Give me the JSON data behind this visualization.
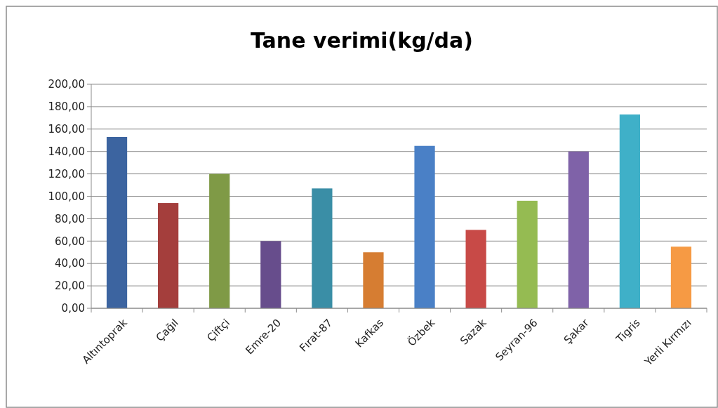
{
  "chart_data": {
    "type": "bar",
    "title": "Tane verimi(kg/da)",
    "categories": [
      "Altıntoprak",
      "Çağıl",
      "Çiftçi",
      "Emre-20",
      "Fırat-87",
      "Kafkas",
      "Özbek",
      "Sazak",
      "Seyran-96",
      "Şakar",
      "Tigris",
      "Yerli Kırmızı"
    ],
    "values": [
      153,
      94,
      120,
      60,
      107,
      50,
      145,
      70,
      96,
      140,
      173,
      55
    ],
    "colors": [
      "#3c64a0",
      "#a43e3c",
      "#7f9a46",
      "#674d8c",
      "#3a8ea6",
      "#d67d32",
      "#4a80c6",
      "#c84a47",
      "#95bb52",
      "#7f62a8",
      "#3fb0c8",
      "#f69a44"
    ],
    "ylim": [
      0,
      200
    ],
    "yticks": [
      {
        "value": 0,
        "label": "0,00"
      },
      {
        "value": 20,
        "label": "20,00"
      },
      {
        "value": 40,
        "label": "40,00"
      },
      {
        "value": 60,
        "label": "60,00"
      },
      {
        "value": 80,
        "label": "80,00"
      },
      {
        "value": 100,
        "label": "100,00"
      },
      {
        "value": 120,
        "label": "120,00"
      },
      {
        "value": 140,
        "label": "140,00"
      },
      {
        "value": 160,
        "label": "160,00"
      },
      {
        "value": 180,
        "label": "180,00"
      },
      {
        "value": 200,
        "label": "200,00"
      }
    ],
    "grid": "y"
  }
}
